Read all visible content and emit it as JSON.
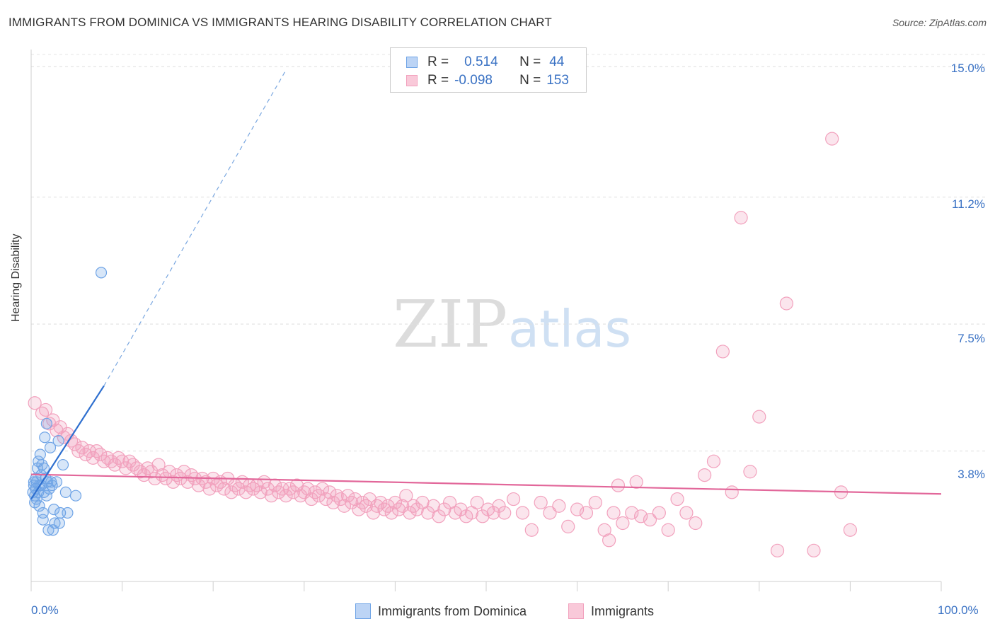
{
  "title": "IMMIGRANTS FROM DOMINICA VS IMMIGRANTS HEARING DISABILITY CORRELATION CHART",
  "source": "Source: ZipAtlas.com",
  "watermark": {
    "zip": "ZIP",
    "atlas": "atlas"
  },
  "legend_top": {
    "rows": [
      {
        "r_label": "R =",
        "r_value": "0.514",
        "n_label": "N =",
        "n_value": "44"
      },
      {
        "r_label": "R =",
        "r_value": "-0.098",
        "n_label": "N =",
        "n_value": "153"
      }
    ]
  },
  "chart_data": {
    "type": "scatter",
    "title": "IMMIGRANTS FROM DOMINICA VS IMMIGRANTS HEARING DISABILITY CORRELATION CHART",
    "xlabel": "",
    "ylabel": "Hearing Disability",
    "xlim": [
      0,
      100
    ],
    "ylim": [
      0,
      15.5
    ],
    "x_tick_labels": [
      "0.0%",
      "100.0%"
    ],
    "y_ticks": [
      3.8,
      7.5,
      11.2,
      15.0
    ],
    "y_tick_labels": [
      "3.8%",
      "7.5%",
      "11.2%",
      "15.0%"
    ],
    "grid": true,
    "legend_position": "bottom",
    "colors": {
      "blue": "#6fa4e6",
      "blue_line": "#2e6fcf",
      "pink": "#f2a1bd",
      "pink_line": "#e2679a"
    },
    "series": [
      {
        "name": "Immigrants from Dominica",
        "r": 0.514,
        "n": 44,
        "trend": {
          "x0": 0,
          "y0": 2.4,
          "x1": 8.0,
          "y1": 5.7,
          "dash_to_x": 28.0,
          "dash_to_y": 14.9
        },
        "points": [
          [
            0.2,
            2.6
          ],
          [
            0.3,
            2.8
          ],
          [
            0.4,
            2.5
          ],
          [
            0.5,
            2.7
          ],
          [
            0.5,
            3.0
          ],
          [
            0.6,
            2.9
          ],
          [
            0.7,
            3.3
          ],
          [
            0.8,
            3.5
          ],
          [
            0.8,
            2.6
          ],
          [
            0.9,
            2.2
          ],
          [
            1.0,
            3.7
          ],
          [
            1.1,
            2.8
          ],
          [
            1.2,
            3.4
          ],
          [
            1.3,
            2.0
          ],
          [
            1.3,
            1.8
          ],
          [
            1.4,
            2.6
          ],
          [
            1.5,
            4.2
          ],
          [
            1.6,
            3.0
          ],
          [
            1.7,
            4.6
          ],
          [
            1.8,
            2.9
          ],
          [
            1.9,
            1.5
          ],
          [
            2.0,
            2.7
          ],
          [
            2.1,
            3.9
          ],
          [
            2.2,
            2.9
          ],
          [
            2.4,
            1.5
          ],
          [
            2.5,
            2.1
          ],
          [
            2.6,
            1.7
          ],
          [
            2.8,
            2.9
          ],
          [
            3.0,
            4.1
          ],
          [
            3.1,
            1.7
          ],
          [
            3.2,
            2.0
          ],
          [
            3.5,
            3.4
          ],
          [
            0.4,
            2.3
          ],
          [
            0.6,
            2.4
          ],
          [
            0.9,
            2.8
          ],
          [
            1.1,
            3.1
          ],
          [
            1.4,
            3.3
          ],
          [
            2.3,
            2.8
          ],
          [
            3.8,
            2.6
          ],
          [
            4.0,
            2.0
          ],
          [
            4.9,
            2.5
          ],
          [
            7.7,
            9.0
          ],
          [
            0.3,
            2.9
          ],
          [
            1.7,
            2.5
          ]
        ]
      },
      {
        "name": "Immigrants",
        "r": -0.098,
        "n": 153,
        "trend": {
          "x0": 0,
          "y0": 3.12,
          "x1": 100,
          "y1": 2.55
        },
        "points": [
          [
            0.4,
            5.2
          ],
          [
            1.2,
            4.9
          ],
          [
            1.6,
            5.0
          ],
          [
            2.0,
            4.6
          ],
          [
            2.4,
            4.7
          ],
          [
            2.8,
            4.4
          ],
          [
            3.2,
            4.5
          ],
          [
            3.6,
            4.2
          ],
          [
            4.0,
            4.3
          ],
          [
            4.4,
            4.1
          ],
          [
            4.8,
            4.0
          ],
          [
            5.2,
            3.8
          ],
          [
            5.6,
            3.9
          ],
          [
            6.0,
            3.7
          ],
          [
            6.4,
            3.8
          ],
          [
            6.8,
            3.6
          ],
          [
            7.2,
            3.8
          ],
          [
            7.6,
            3.7
          ],
          [
            8.0,
            3.5
          ],
          [
            8.4,
            3.6
          ],
          [
            8.8,
            3.5
          ],
          [
            9.2,
            3.4
          ],
          [
            9.6,
            3.6
          ],
          [
            10.0,
            3.5
          ],
          [
            10.4,
            3.3
          ],
          [
            10.8,
            3.5
          ],
          [
            11.2,
            3.4
          ],
          [
            11.6,
            3.3
          ],
          [
            12.0,
            3.2
          ],
          [
            12.4,
            3.1
          ],
          [
            12.8,
            3.3
          ],
          [
            13.2,
            3.2
          ],
          [
            13.6,
            3.0
          ],
          [
            14.0,
            3.4
          ],
          [
            14.4,
            3.1
          ],
          [
            14.8,
            3.0
          ],
          [
            15.2,
            3.2
          ],
          [
            15.6,
            2.9
          ],
          [
            16.0,
            3.1
          ],
          [
            16.4,
            3.0
          ],
          [
            16.8,
            3.2
          ],
          [
            17.2,
            2.9
          ],
          [
            17.6,
            3.1
          ],
          [
            18.0,
            3.0
          ],
          [
            18.4,
            2.8
          ],
          [
            18.8,
            3.0
          ],
          [
            19.2,
            2.9
          ],
          [
            19.6,
            2.7
          ],
          [
            20.0,
            3.0
          ],
          [
            20.4,
            2.8
          ],
          [
            20.8,
            2.9
          ],
          [
            21.2,
            2.7
          ],
          [
            21.6,
            3.0
          ],
          [
            22.0,
            2.6
          ],
          [
            22.4,
            2.8
          ],
          [
            22.8,
            2.7
          ],
          [
            23.2,
            2.9
          ],
          [
            23.6,
            2.6
          ],
          [
            24.0,
            2.8
          ],
          [
            24.4,
            2.7
          ],
          [
            24.8,
            2.8
          ],
          [
            25.2,
            2.6
          ],
          [
            25.6,
            2.9
          ],
          [
            26.0,
            2.7
          ],
          [
            26.4,
            2.5
          ],
          [
            26.8,
            2.8
          ],
          [
            27.2,
            2.6
          ],
          [
            27.6,
            2.7
          ],
          [
            28.0,
            2.5
          ],
          [
            28.4,
            2.7
          ],
          [
            28.8,
            2.6
          ],
          [
            29.2,
            2.8
          ],
          [
            29.6,
            2.5
          ],
          [
            30.0,
            2.6
          ],
          [
            30.4,
            2.7
          ],
          [
            30.8,
            2.4
          ],
          [
            31.2,
            2.6
          ],
          [
            31.6,
            2.5
          ],
          [
            32.0,
            2.7
          ],
          [
            32.4,
            2.4
          ],
          [
            32.8,
            2.6
          ],
          [
            33.2,
            2.3
          ],
          [
            33.6,
            2.5
          ],
          [
            34.0,
            2.4
          ],
          [
            34.4,
            2.2
          ],
          [
            34.8,
            2.5
          ],
          [
            35.2,
            2.3
          ],
          [
            35.6,
            2.4
          ],
          [
            36.0,
            2.1
          ],
          [
            36.4,
            2.3
          ],
          [
            36.8,
            2.2
          ],
          [
            37.2,
            2.4
          ],
          [
            37.6,
            2.0
          ],
          [
            38.0,
            2.2
          ],
          [
            38.4,
            2.3
          ],
          [
            38.8,
            2.1
          ],
          [
            39.2,
            2.2
          ],
          [
            39.6,
            2.0
          ],
          [
            40.0,
            2.3
          ],
          [
            40.4,
            2.1
          ],
          [
            40.8,
            2.2
          ],
          [
            41.2,
            2.5
          ],
          [
            41.6,
            2.0
          ],
          [
            42.0,
            2.2
          ],
          [
            42.4,
            2.1
          ],
          [
            43.0,
            2.3
          ],
          [
            43.6,
            2.0
          ],
          [
            44.2,
            2.2
          ],
          [
            44.8,
            1.9
          ],
          [
            45.4,
            2.1
          ],
          [
            46.0,
            2.3
          ],
          [
            46.6,
            2.0
          ],
          [
            47.2,
            2.1
          ],
          [
            47.8,
            1.9
          ],
          [
            48.4,
            2.0
          ],
          [
            49.0,
            2.3
          ],
          [
            49.6,
            1.9
          ],
          [
            50.2,
            2.1
          ],
          [
            50.8,
            2.0
          ],
          [
            51.4,
            2.2
          ],
          [
            52.0,
            2.0
          ],
          [
            53.0,
            2.4
          ],
          [
            54.0,
            2.0
          ],
          [
            55.0,
            1.5
          ],
          [
            56.0,
            2.3
          ],
          [
            57.0,
            2.0
          ],
          [
            58.0,
            2.2
          ],
          [
            59.0,
            1.6
          ],
          [
            60.0,
            2.1
          ],
          [
            61.0,
            2.0
          ],
          [
            62.0,
            2.3
          ],
          [
            63.0,
            1.5
          ],
          [
            64.0,
            2.0
          ],
          [
            65.0,
            1.7
          ],
          [
            66.0,
            2.0
          ],
          [
            67.0,
            1.9
          ],
          [
            68.0,
            1.8
          ],
          [
            69.0,
            2.0
          ],
          [
            70.0,
            1.5
          ],
          [
            71.0,
            2.4
          ],
          [
            72.0,
            2.0
          ],
          [
            73.0,
            1.7
          ],
          [
            74.0,
            3.1
          ],
          [
            75.0,
            3.5
          ],
          [
            76.0,
            6.7
          ],
          [
            78.0,
            10.6
          ],
          [
            79.0,
            3.2
          ],
          [
            80.0,
            4.8
          ],
          [
            82.0,
            0.9
          ],
          [
            83.0,
            8.1
          ],
          [
            86.0,
            0.9
          ],
          [
            88.0,
            12.9
          ],
          [
            89.0,
            2.6
          ],
          [
            90.0,
            1.5
          ],
          [
            77.0,
            2.6
          ],
          [
            63.5,
            1.2
          ],
          [
            64.5,
            2.8
          ],
          [
            66.5,
            2.9
          ]
        ]
      }
    ]
  },
  "axes": {
    "x_min_label": "0.0%",
    "x_max_label": "100.0%"
  },
  "bottom_legend": [
    {
      "label": "Immigrants from Dominica"
    },
    {
      "label": "Immigrants"
    }
  ]
}
